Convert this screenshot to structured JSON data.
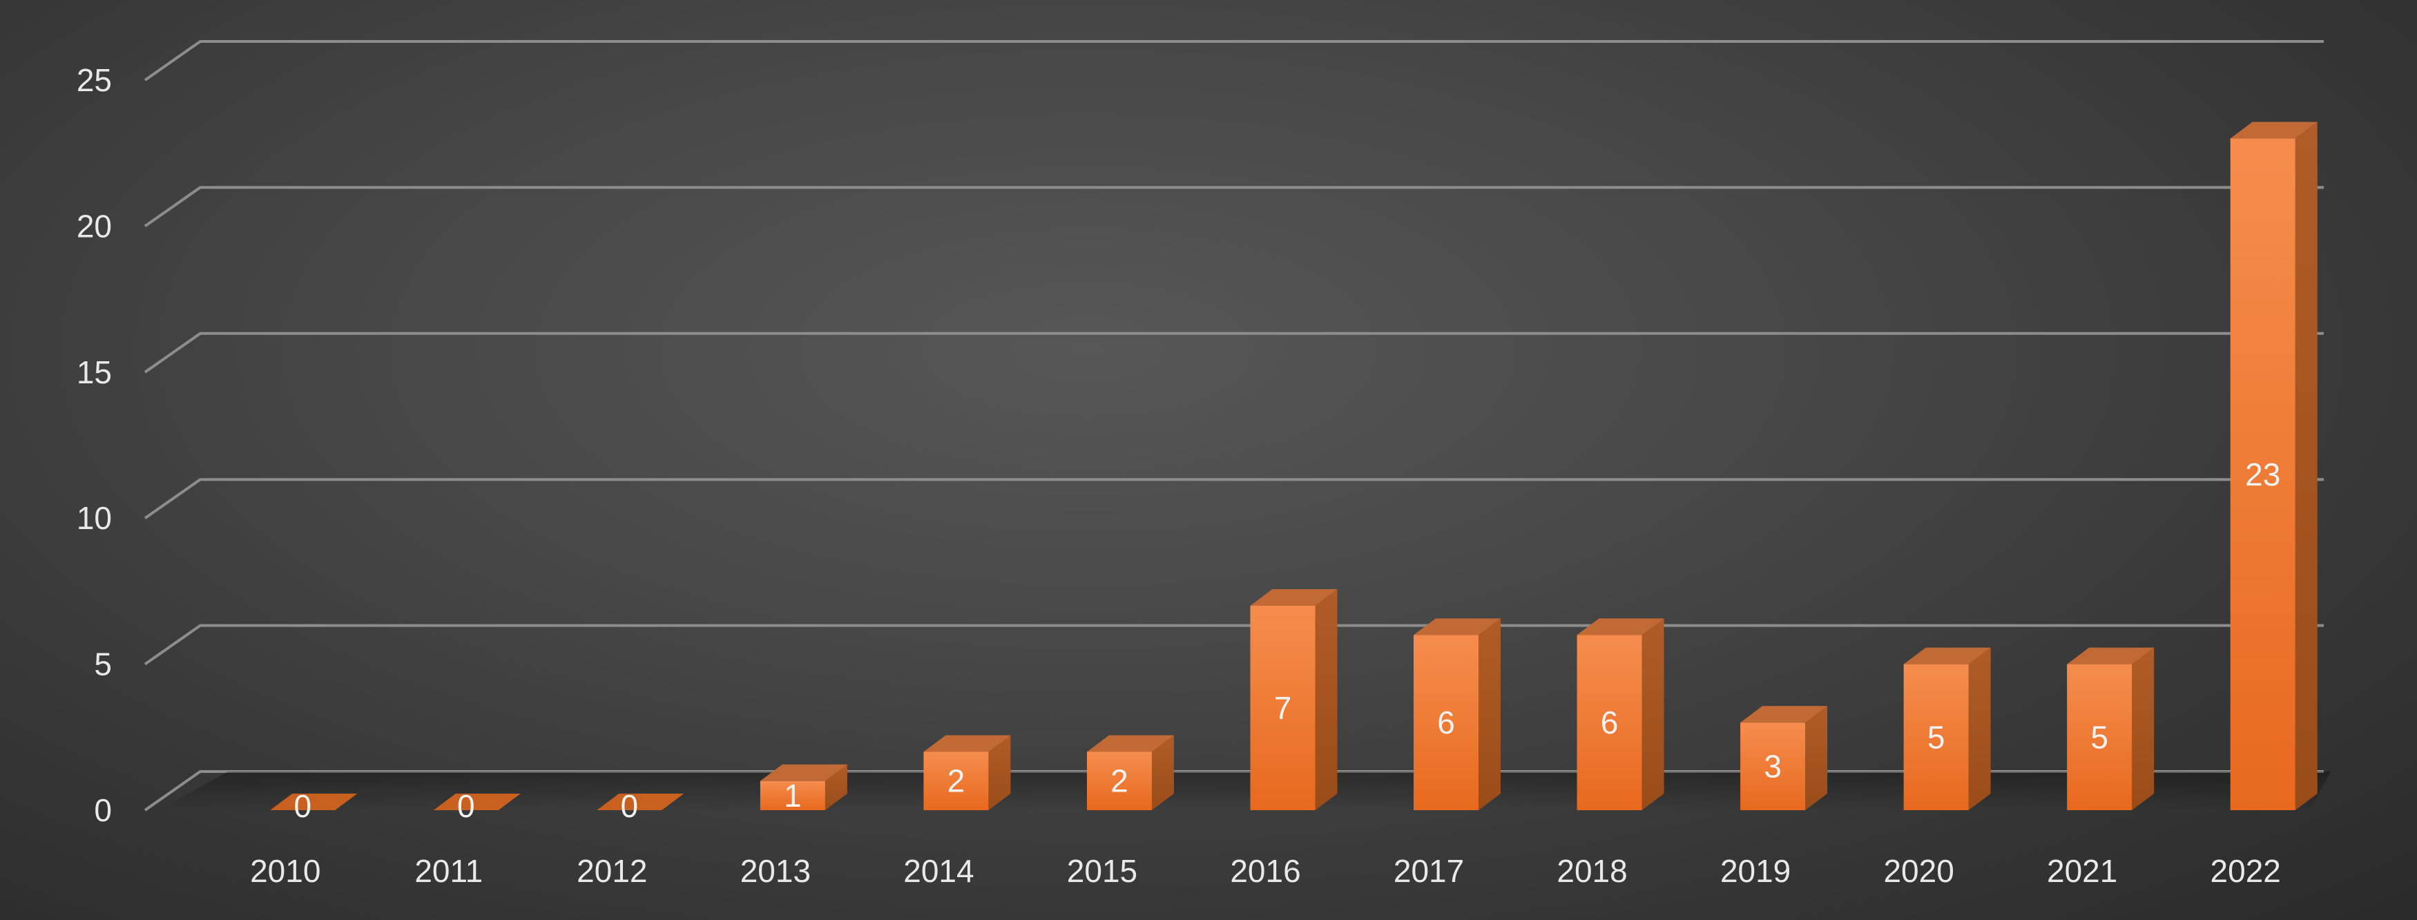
{
  "chart_data": {
    "type": "bar",
    "style": "3d-column",
    "title": "",
    "xlabel": "",
    "ylabel": "",
    "categories": [
      "2010",
      "2011",
      "2012",
      "2013",
      "2014",
      "2015",
      "2016",
      "2017",
      "2018",
      "2019",
      "2020",
      "2021",
      "2022"
    ],
    "values": [
      0,
      0,
      0,
      1,
      2,
      2,
      7,
      6,
      6,
      3,
      5,
      5,
      23
    ],
    "data_labels": [
      "0",
      "0",
      "0",
      "1",
      "2",
      "2",
      "7",
      "6",
      "6",
      "3",
      "5",
      "5",
      "23"
    ],
    "ylim": [
      0,
      25
    ],
    "yticks": [
      0,
      5,
      10,
      15,
      20,
      25
    ],
    "ytick_labels": [
      "0",
      "5",
      "10",
      "15",
      "20",
      "25"
    ],
    "grid": true,
    "legend": "none",
    "colors": {
      "bar_front_top": "#f58d4e",
      "bar_front_bottom": "#e8691e",
      "bar_side": "#a8541f",
      "bar_top": "#c26a35",
      "gridline": "#8d8d8d",
      "text": "#e9e9e9",
      "background": "#474747"
    }
  }
}
